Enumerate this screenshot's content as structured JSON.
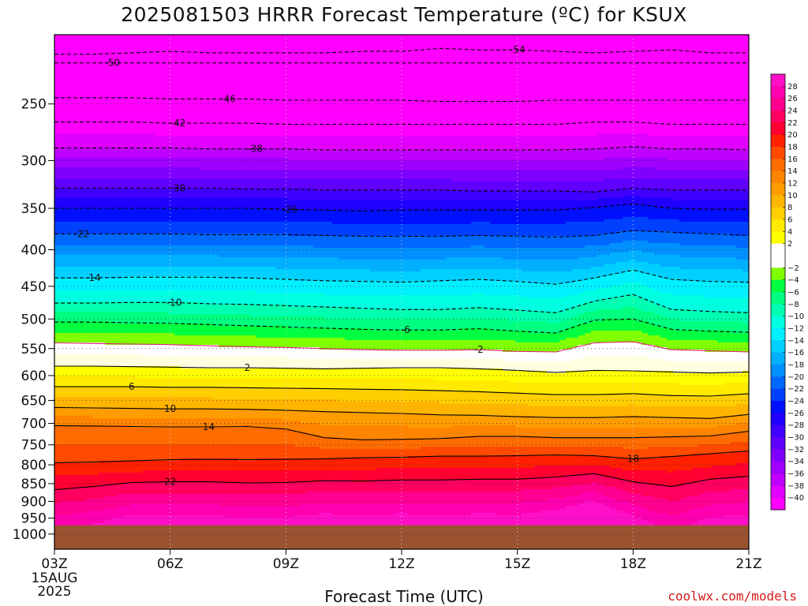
{
  "chart_data": {
    "type": "heatmap",
    "title": "2025081503 HRRR Forecast Temperature (ºC) for KSUX",
    "xlabel": "Forecast Time (UTC)",
    "ylabel": "",
    "credit": "coolwx.com/models",
    "x_ticks": [
      "03Z",
      "06Z",
      "09Z",
      "12Z",
      "15Z",
      "18Z",
      "21Z"
    ],
    "x_hours": [
      3,
      6,
      9,
      12,
      15,
      18,
      21
    ],
    "x_date_lines": [
      "15AUG",
      "2025"
    ],
    "y_ticks": [
      250,
      300,
      350,
      400,
      450,
      500,
      550,
      600,
      650,
      700,
      750,
      800,
      850,
      900,
      950,
      1000
    ],
    "y_range_hpa": [
      1050,
      200
    ],
    "log_pressure_axis": true,
    "ground_pressure_hpa": 972,
    "colorbar_labels": [
      28,
      26,
      24,
      22,
      20,
      18,
      16,
      14,
      12,
      10,
      8,
      6,
      4,
      2,
      -2,
      -4,
      -6,
      -8,
      -10,
      -12,
      -14,
      -16,
      -18,
      -20,
      -22,
      -24,
      -26,
      -28,
      -30,
      -32,
      -34,
      -36,
      -38,
      -40
    ],
    "colors": {
      "ground": "#9b5230",
      "zero_band": "#ffffff",
      "zero_contour": "#e0207a",
      "positive_contours": "#000000"
    },
    "series": [
      {
        "level": -54,
        "p": [
          213,
          213,
          212,
          211,
          212,
          212,
          212,
          212,
          211,
          211,
          209,
          210,
          210,
          211,
          212,
          211,
          210,
          212,
          212
        ]
      },
      {
        "level": -50,
        "p": [
          219,
          219,
          219,
          219,
          219,
          219,
          219,
          219,
          219,
          219,
          219,
          219,
          219,
          219,
          219,
          219,
          219,
          219,
          219
        ]
      },
      {
        "level": -46,
        "p": [
          245,
          245,
          245,
          246,
          246,
          246,
          247,
          247,
          247,
          247,
          248,
          248,
          248,
          247,
          247,
          247,
          247,
          247,
          247
        ]
      },
      {
        "level": -42,
        "p": [
          265,
          265,
          265,
          266,
          266,
          266,
          267,
          267,
          267,
          267,
          267,
          267,
          267,
          267,
          265,
          265,
          267,
          267,
          267
        ]
      },
      {
        "level": -38,
        "p": [
          288,
          288,
          288,
          288,
          289,
          289,
          289,
          290,
          290,
          290,
          290,
          290,
          290,
          290,
          289,
          287,
          289,
          289,
          290
        ]
      },
      {
        "level": -30,
        "p": [
          328,
          328,
          328,
          328,
          328,
          329,
          329,
          330,
          330,
          330,
          330,
          331,
          331,
          331,
          332,
          328,
          330,
          330,
          330
        ]
      },
      {
        "level": -26,
        "p": [
          350,
          350,
          350,
          350,
          350,
          350,
          351,
          352,
          353,
          352,
          352,
          352,
          352,
          352,
          349,
          345,
          350,
          351,
          351
        ]
      },
      {
        "level": -22,
        "p": [
          380,
          380,
          380,
          380,
          381,
          381,
          381,
          382,
          383,
          383,
          383,
          382,
          383,
          384,
          382,
          376,
          378,
          380,
          382
        ]
      },
      {
        "level": -14,
        "p": [
          438,
          438,
          437,
          437,
          437,
          438,
          440,
          442,
          443,
          444,
          442,
          440,
          443,
          447,
          438,
          427,
          440,
          443,
          444
        ]
      },
      {
        "level": -10,
        "p": [
          475,
          475,
          474,
          474,
          476,
          477,
          479,
          481,
          483,
          485,
          485,
          482,
          486,
          490,
          472,
          462,
          485,
          488,
          490
        ]
      },
      {
        "level": -6,
        "p": [
          505,
          505,
          506,
          507,
          509,
          511,
          513,
          515,
          517,
          518,
          518,
          516,
          520,
          523,
          502,
          500,
          517,
          520,
          522
        ]
      },
      {
        "level": -2,
        "p": [
          540,
          541,
          542,
          543,
          545,
          547,
          548,
          550,
          552,
          553,
          553,
          552,
          555,
          556,
          540,
          538,
          552,
          554,
          556
        ]
      },
      {
        "level": 2,
        "p": [
          582,
          582,
          583,
          584,
          585,
          585,
          586,
          587,
          586,
          585,
          585,
          587,
          590,
          594,
          590,
          591,
          593,
          595,
          593
        ]
      },
      {
        "level": 6,
        "p": [
          622,
          622,
          622,
          623,
          623,
          624,
          625,
          626,
          627,
          628,
          630,
          632,
          635,
          638,
          638,
          636,
          640,
          641,
          636
        ]
      },
      {
        "level": 10,
        "p": [
          665,
          666,
          667,
          668,
          668,
          669,
          671,
          674,
          676,
          678,
          681,
          682,
          685,
          687,
          687,
          685,
          687,
          689,
          680
        ]
      },
      {
        "level": 14,
        "p": [
          705,
          706,
          707,
          708,
          708,
          707,
          713,
          733,
          738,
          737,
          735,
          730,
          730,
          733,
          733,
          733,
          731,
          729,
          718
        ]
      },
      {
        "level": 18,
        "p": [
          795,
          793,
          790,
          787,
          786,
          787,
          786,
          785,
          782,
          781,
          778,
          778,
          777,
          775,
          777,
          785,
          779,
          772,
          765
        ]
      },
      {
        "level": 22,
        "p": [
          867,
          858,
          847,
          845,
          845,
          848,
          847,
          842,
          843,
          840,
          840,
          838,
          838,
          832,
          823,
          845,
          858,
          838,
          830
        ]
      }
    ]
  }
}
